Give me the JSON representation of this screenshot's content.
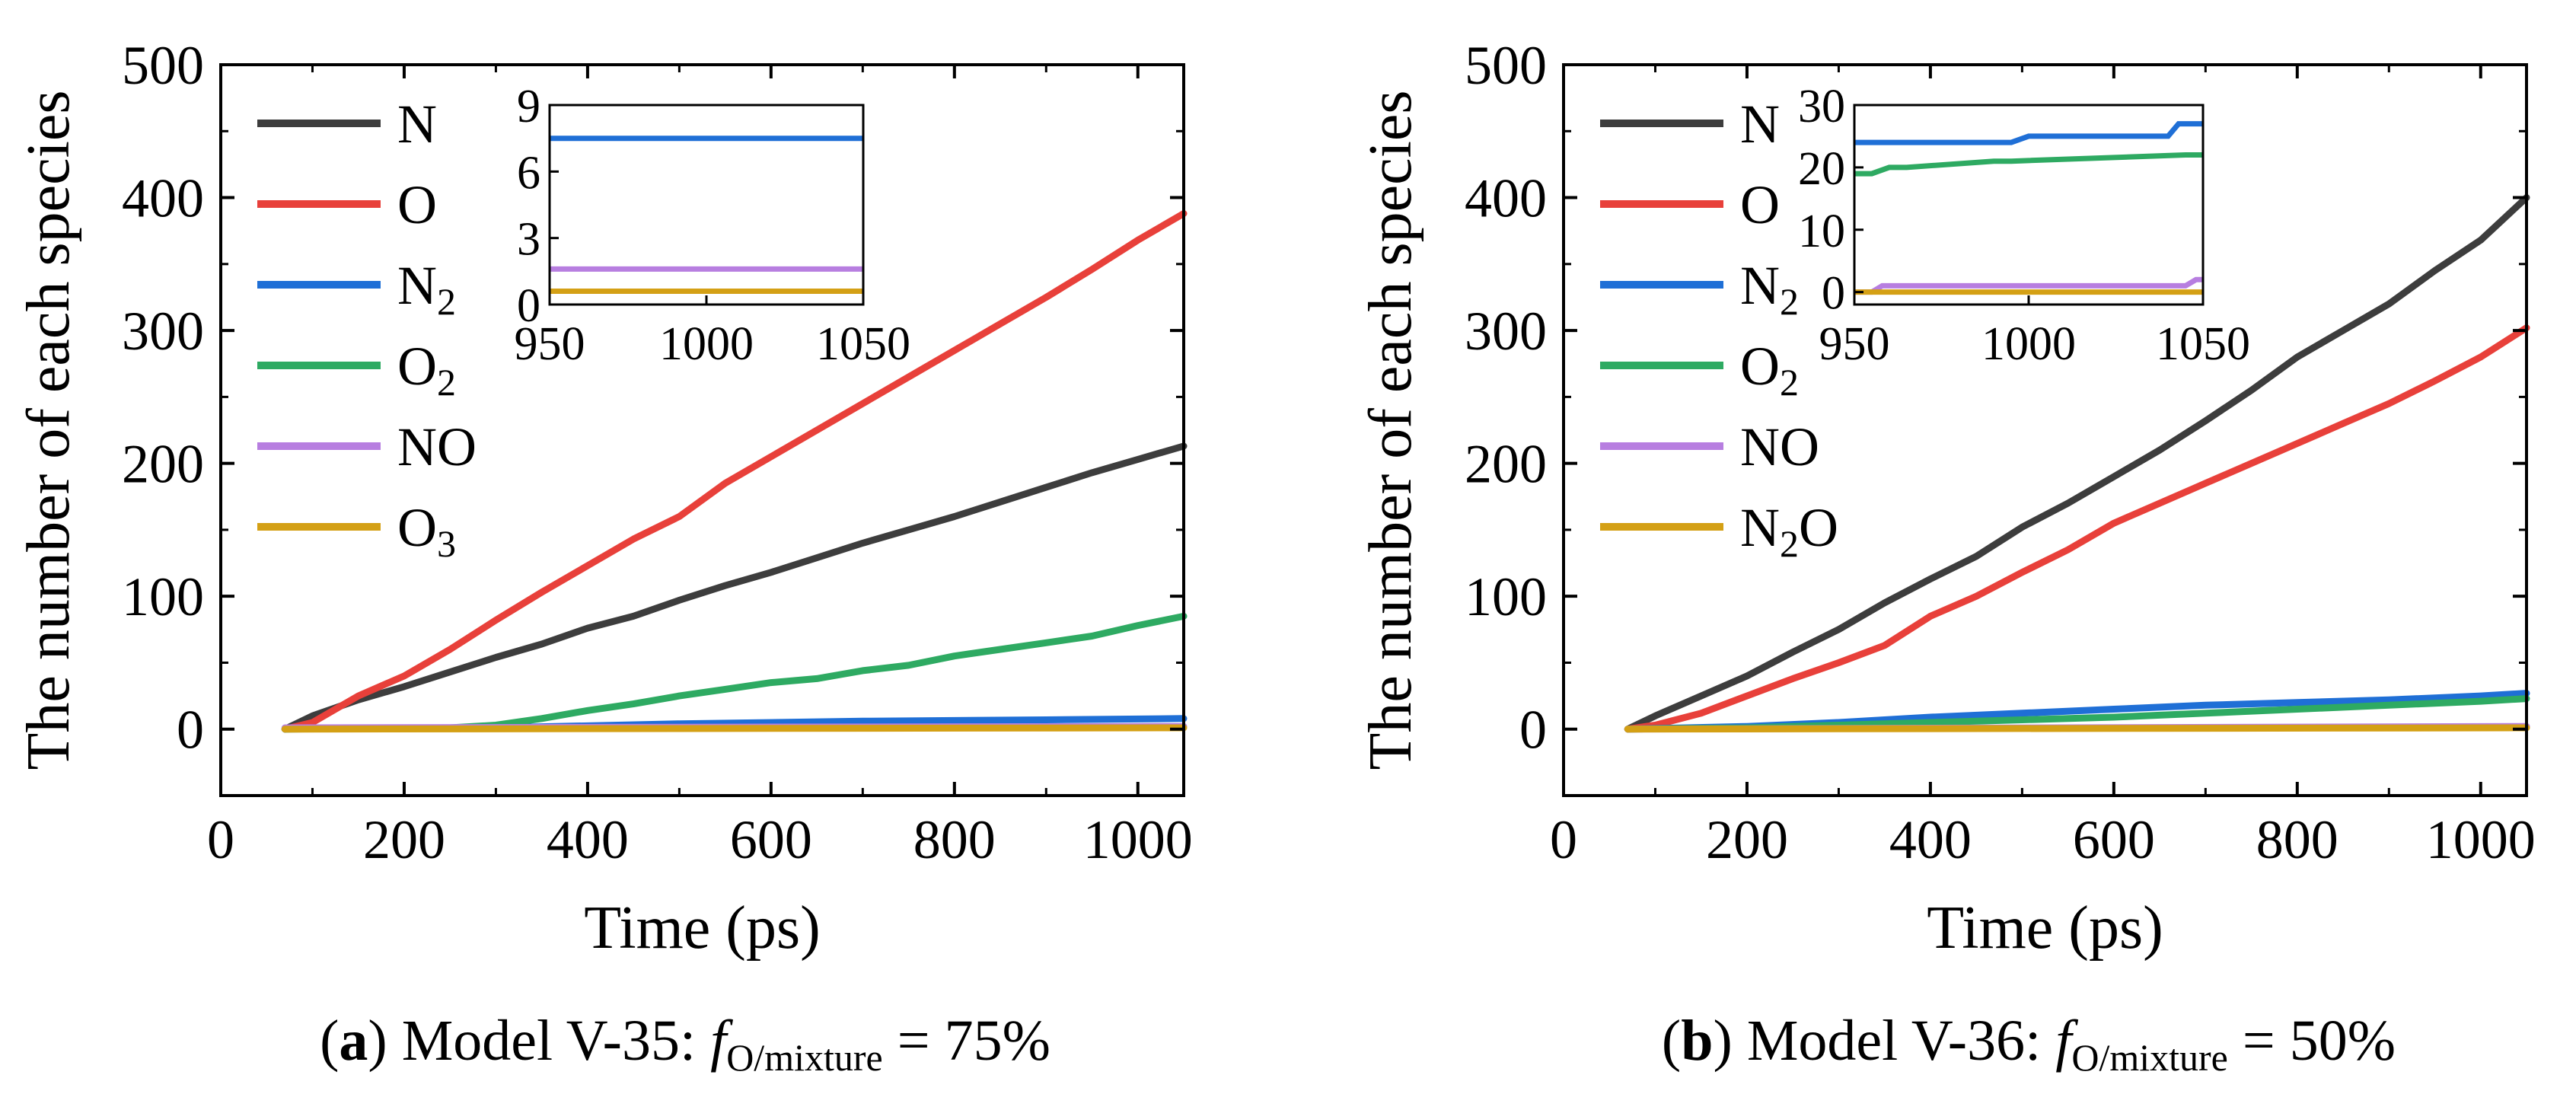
{
  "chart_data": [
    {
      "type": "line",
      "panel_label": "a",
      "caption": {
        "label": "a",
        "model": "Model V-35:",
        "f_symbol": "f",
        "f_subscript": "O/mixture",
        "equals": "=",
        "value": "75%"
      },
      "xlabel": "Time (ps)",
      "ylabel": "The number of each species",
      "xlim": [
        0,
        1050
      ],
      "ylim": [
        -50,
        500
      ],
      "xticks": [
        0,
        200,
        400,
        600,
        800,
        1000
      ],
      "yticks": [
        0,
        100,
        200,
        300,
        400,
        500
      ],
      "legend_position": "top-left",
      "series": [
        {
          "name": "N",
          "base": "N",
          "sub": "",
          "suffix": "",
          "color": "#3d3d3d",
          "x": [
            70,
            100,
            150,
            200,
            250,
            300,
            350,
            400,
            450,
            500,
            550,
            600,
            650,
            700,
            750,
            800,
            850,
            900,
            950,
            1000,
            1050
          ],
          "y": [
            0,
            10,
            22,
            32,
            43,
            54,
            64,
            76,
            85,
            97,
            108,
            118,
            129,
            140,
            150,
            160,
            171,
            182,
            193,
            203,
            213
          ]
        },
        {
          "name": "O",
          "base": "O",
          "sub": "",
          "suffix": "",
          "color": "#e8403a",
          "x": [
            70,
            100,
            150,
            200,
            250,
            300,
            350,
            400,
            450,
            500,
            550,
            600,
            650,
            700,
            750,
            800,
            850,
            900,
            950,
            1000,
            1050
          ],
          "y": [
            0,
            5,
            25,
            40,
            60,
            82,
            103,
            123,
            143,
            160,
            185,
            205,
            225,
            245,
            265,
            285,
            305,
            325,
            346,
            368,
            388
          ]
        },
        {
          "name": "N2",
          "base": "N",
          "sub": "2",
          "suffix": "",
          "color": "#1f6fd6",
          "x": [
            70,
            300,
            500,
            700,
            900,
            1050
          ],
          "y": [
            0,
            1,
            4,
            6,
            7,
            8
          ]
        },
        {
          "name": "O2",
          "base": "O",
          "sub": "2",
          "suffix": "",
          "color": "#2eaa62",
          "x": [
            70,
            250,
            300,
            350,
            400,
            450,
            500,
            550,
            600,
            650,
            700,
            750,
            800,
            850,
            900,
            950,
            1000,
            1050
          ],
          "y": [
            0,
            1,
            3,
            8,
            14,
            19,
            25,
            30,
            35,
            38,
            44,
            48,
            55,
            60,
            65,
            70,
            78,
            85
          ]
        },
        {
          "name": "NO",
          "base": "NO",
          "sub": "",
          "suffix": "",
          "color": "#b77ee0",
          "x": [
            70,
            1050
          ],
          "y": [
            1,
            2
          ]
        },
        {
          "name": "O3",
          "base": "O",
          "sub": "3",
          "suffix": "",
          "color": "#d4a015",
          "x": [
            70,
            1050
          ],
          "y": [
            0,
            1
          ]
        }
      ],
      "inset": {
        "xlim": [
          950,
          1050
        ],
        "ylim": [
          0,
          9
        ],
        "xticks": [
          950,
          1000,
          1050
        ],
        "yticks": [
          0,
          3,
          6,
          9
        ],
        "series": [
          {
            "name": "N2",
            "color": "#1f6fd6",
            "x": [
              950,
              1050
            ],
            "y": [
              7.5,
              7.5
            ]
          },
          {
            "name": "NO",
            "color": "#b77ee0",
            "x": [
              950,
              1050
            ],
            "y": [
              1.6,
              1.6
            ]
          },
          {
            "name": "O3",
            "color": "#d4a015",
            "x": [
              950,
              1050
            ],
            "y": [
              0.6,
              0.6
            ]
          }
        ]
      }
    },
    {
      "type": "line",
      "panel_label": "b",
      "caption": {
        "label": "b",
        "model": "Model V-36:",
        "f_symbol": "f",
        "f_subscript": "O/mixture",
        "equals": "=",
        "value": "50%"
      },
      "xlabel": "Time (ps)",
      "ylabel": "The number of each species",
      "xlim": [
        0,
        1050
      ],
      "ylim": [
        -50,
        500
      ],
      "xticks": [
        0,
        200,
        400,
        600,
        800,
        1000
      ],
      "yticks": [
        0,
        100,
        200,
        300,
        400,
        500
      ],
      "legend_position": "top-left",
      "series": [
        {
          "name": "N",
          "base": "N",
          "sub": "",
          "suffix": "",
          "color": "#3d3d3d",
          "x": [
            70,
            100,
            150,
            200,
            250,
            300,
            350,
            400,
            450,
            500,
            550,
            600,
            650,
            700,
            750,
            800,
            850,
            900,
            950,
            1000,
            1050
          ],
          "y": [
            0,
            10,
            25,
            40,
            58,
            75,
            95,
            113,
            130,
            152,
            170,
            190,
            210,
            232,
            255,
            280,
            300,
            320,
            345,
            368,
            400
          ]
        },
        {
          "name": "O",
          "base": "O",
          "sub": "",
          "suffix": "",
          "color": "#e8403a",
          "x": [
            70,
            100,
            150,
            200,
            250,
            300,
            350,
            400,
            450,
            500,
            550,
            600,
            650,
            700,
            750,
            800,
            850,
            900,
            950,
            1000,
            1050
          ],
          "y": [
            0,
            3,
            12,
            25,
            38,
            50,
            63,
            85,
            100,
            118,
            135,
            155,
            170,
            185,
            200,
            215,
            230,
            245,
            262,
            280,
            302
          ]
        },
        {
          "name": "N2",
          "base": "N",
          "sub": "2",
          "suffix": "",
          "color": "#1f6fd6",
          "x": [
            70,
            200,
            300,
            400,
            500,
            600,
            700,
            800,
            900,
            1000,
            1050
          ],
          "y": [
            0,
            2,
            5,
            9,
            12,
            15,
            18,
            20,
            22,
            25,
            27
          ]
        },
        {
          "name": "O2",
          "base": "O",
          "sub": "2",
          "suffix": "",
          "color": "#2eaa62",
          "x": [
            70,
            200,
            300,
            400,
            500,
            600,
            700,
            800,
            900,
            1000,
            1050
          ],
          "y": [
            0,
            1,
            3,
            5,
            7,
            9,
            12,
            15,
            18,
            21,
            23
          ]
        },
        {
          "name": "NO",
          "base": "NO",
          "sub": "",
          "suffix": "",
          "color": "#b77ee0",
          "x": [
            70,
            1050
          ],
          "y": [
            0,
            2
          ]
        },
        {
          "name": "N2O",
          "base": "N",
          "sub": "2",
          "suffix": "O",
          "color": "#d4a015",
          "x": [
            70,
            1050
          ],
          "y": [
            0,
            1
          ]
        }
      ],
      "inset": {
        "xlim": [
          950,
          1050
        ],
        "ylim": [
          -2,
          30
        ],
        "xticks": [
          950,
          1000,
          1050
        ],
        "yticks": [
          0,
          10,
          20,
          30
        ],
        "series": [
          {
            "name": "N2",
            "color": "#1f6fd6",
            "x": [
              950,
              955,
              995,
              1000,
              1040,
              1043,
              1050
            ],
            "y": [
              24,
              24,
              24,
              25,
              25,
              27,
              27
            ]
          },
          {
            "name": "O2",
            "color": "#2eaa62",
            "x": [
              950,
              955,
              960,
              965,
              990,
              995,
              1045,
              1050
            ],
            "y": [
              19,
              19,
              20,
              20,
              21,
              21,
              22,
              22
            ]
          },
          {
            "name": "NO",
            "color": "#b77ee0",
            "x": [
              950,
              955,
              958,
              1045,
              1048,
              1050
            ],
            "y": [
              0,
              0,
              1,
              1,
              2,
              2
            ]
          },
          {
            "name": "N2O",
            "color": "#d4a015",
            "x": [
              950,
              1050
            ],
            "y": [
              0,
              0
            ]
          }
        ]
      }
    }
  ]
}
